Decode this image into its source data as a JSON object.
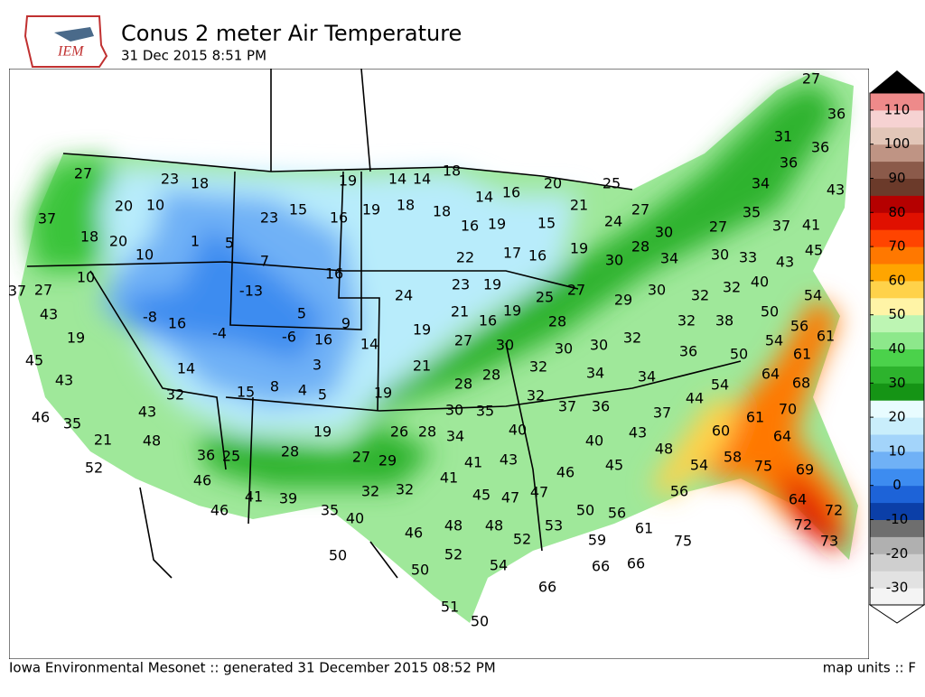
{
  "header": {
    "logo": "IEM",
    "title": "Conus 2 meter Air Temperature",
    "subtitle": "31 Dec 2015 8:51 PM"
  },
  "footer": {
    "left": "Iowa Environmental Mesonet :: generated 31 December 2015 08:52 PM",
    "right": "map units :: F"
  },
  "colorbar": {
    "clim": [
      -35,
      115
    ],
    "colors": [
      "#f4f4f4",
      "#e2e2e2",
      "#cfcfcf",
      "#b0b0b0",
      "#6e6e6e",
      "#0b3fa8",
      "#1d63d8",
      "#3d8cf0",
      "#70b1f6",
      "#a3d4fa",
      "#c9eefb",
      "#e8fcff",
      "#159415",
      "#2db32d",
      "#4bd24b",
      "#8de88b",
      "#bdf5b3",
      "#fff4a6",
      "#ffd24a",
      "#ffa500",
      "#ff7800",
      "#ff4400",
      "#e01000",
      "#b50000",
      "#6b3a2a",
      "#8b5a4a",
      "#bf9484",
      "#e2c6b8",
      "#f6d2d2",
      "#ee8a8a"
    ],
    "ticks": [
      110,
      100,
      90,
      80,
      70,
      60,
      50,
      40,
      30,
      20,
      10,
      0,
      -10,
      -20,
      -30
    ]
  },
  "stations": [
    27,
    23,
    18,
    19,
    14,
    14,
    18,
    27,
    36,
    31,
    36,
    36,
    34,
    43,
    20,
    25,
    16,
    14,
    37,
    20,
    10,
    23,
    15,
    16,
    19,
    18,
    18,
    16,
    19,
    15,
    21,
    24,
    27,
    35,
    37,
    41,
    18,
    20,
    1,
    5,
    10,
    30,
    27,
    45,
    22,
    17,
    16,
    19,
    28,
    7,
    16,
    34,
    30,
    30,
    33,
    43,
    10,
    37,
    27,
    -13,
    24,
    23,
    19,
    25,
    27,
    29,
    30,
    32,
    32,
    40,
    54,
    43,
    5,
    -8,
    16,
    9,
    21,
    16,
    19,
    28,
    32,
    38,
    50,
    56,
    61,
    19,
    -4,
    -6,
    16,
    14,
    19,
    27,
    30,
    30,
    30,
    32,
    36,
    50,
    54,
    61,
    45,
    3,
    21,
    14,
    32,
    34,
    34,
    64,
    43,
    28,
    28,
    68,
    54,
    32,
    15,
    8,
    4,
    5,
    19,
    32,
    37,
    36,
    44,
    70,
    61,
    46,
    35,
    43,
    30,
    35,
    37,
    19,
    26,
    28,
    34,
    40,
    43,
    60,
    64,
    21,
    48,
    40,
    48,
    58,
    36,
    25,
    28,
    27,
    29,
    41,
    43,
    45,
    54,
    75,
    69,
    52,
    41,
    46,
    46,
    56,
    32,
    32,
    45,
    47,
    47,
    41,
    39,
    64,
    72,
    35,
    46,
    40,
    50,
    56,
    61,
    53,
    48,
    48,
    72,
    46,
    59,
    75,
    73,
    52,
    50,
    52,
    54,
    66,
    66,
    50,
    66,
    51,
    50
  ]
}
